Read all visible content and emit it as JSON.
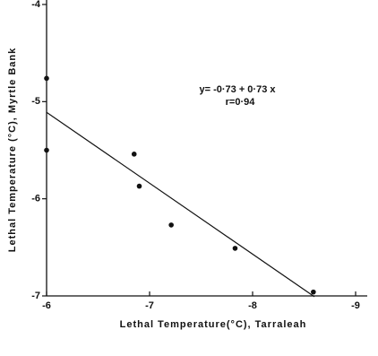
{
  "chart_data": {
    "type": "scatter",
    "xlabel": "Lethal Temperature(°C), Tarraleah",
    "ylabel": "Lethal Temperature (°C), Myrtle Bank",
    "annotations": [
      "y= -0·73 + 0·73 x",
      "r=0·94"
    ],
    "x": [
      -6,
      -6,
      -6.85,
      -6.9,
      -7.21,
      -7.83,
      -8.59
    ],
    "series": [
      {
        "color": "#111111",
        "values": [
          -4.76,
          -5.5,
          -5.54,
          -5.87,
          -6.27,
          -6.51,
          -6.96
        ]
      }
    ],
    "fit": {
      "intercept": -0.73,
      "slope": 0.73,
      "xrange": [
        -6,
        -8.6
      ]
    },
    "xlim": [
      -6,
      -9
    ],
    "ylim": [
      -7,
      -4
    ],
    "xticks": [
      -6,
      -7,
      -8,
      -9
    ],
    "yticks": [
      -4,
      -5,
      -6,
      -7
    ]
  }
}
